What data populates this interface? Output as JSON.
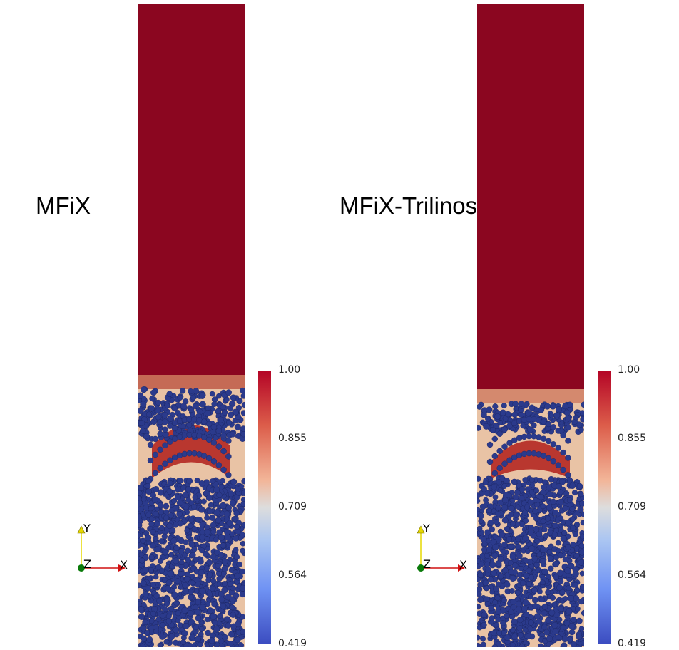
{
  "panels": [
    {
      "title": "MFiX",
      "colorbar": {
        "ticks": [
          "1.00",
          "0.855",
          "0.709",
          "0.564",
          "0.419"
        ]
      },
      "axes": {
        "x": "X",
        "y": "Y",
        "z": "Z"
      }
    },
    {
      "title": "MFiX-Trilinos",
      "colorbar": {
        "ticks": [
          "1.00",
          "0.855",
          "0.709",
          "0.564",
          "0.419"
        ]
      },
      "axes": {
        "x": "X",
        "y": "Y",
        "z": "Z"
      }
    }
  ],
  "colors": {
    "high": "#8b0620",
    "upper": "#c0392b",
    "mid": "#dcdcdc",
    "lower": "#5b7be0",
    "low": "#3b4cc0",
    "particle": "#2b3a8c",
    "y_axis": "#e6d800",
    "x_axis": "#d01010",
    "z_axis": "#0a7a0a"
  }
}
